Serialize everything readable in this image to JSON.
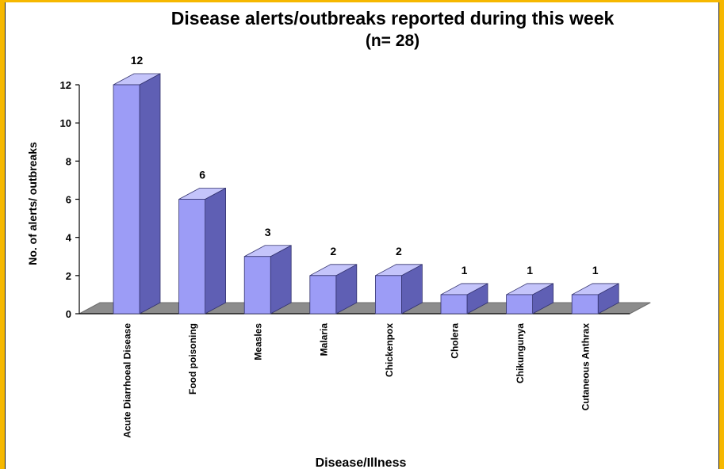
{
  "chart_data": {
    "type": "bar",
    "title": "Disease alerts/outbreaks reported during this week",
    "subtitle": "(n= 28)",
    "xlabel": "Disease/Illness",
    "ylabel": "No. of alerts/ outbreaks",
    "categories": [
      "Acute Diarrhoeal Disease",
      "Food poisoning",
      "Measles",
      "Malaria",
      "Chickenpox",
      "Cholera",
      "Chikungunya",
      "Cutaneous Anthrax"
    ],
    "values": [
      12,
      6,
      3,
      2,
      2,
      1,
      1,
      1
    ],
    "ylim": [
      0,
      12
    ],
    "yticks": [
      0,
      2,
      4,
      6,
      8,
      10,
      12
    ],
    "grid": false,
    "legend": "none",
    "colors": {
      "bar_front": "#9c9cf6",
      "bar_side": "#5f5fb4",
      "bar_top": "#c4c4fa",
      "floor": "#8c8c8c",
      "frame": "#f6b800"
    }
  }
}
